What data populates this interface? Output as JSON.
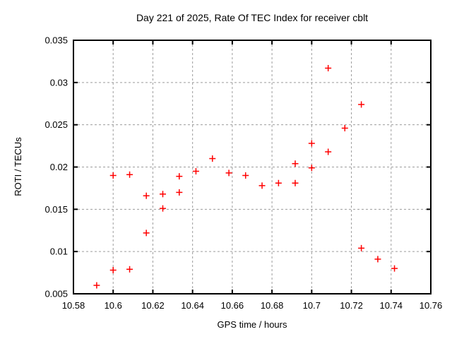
{
  "window": {
    "background": "#ffffff"
  },
  "chart_data": {
    "type": "scatter",
    "title": "Day 221 of 2025, Rate Of TEC Index for receiver cblt",
    "xlabel": "GPS time / hours",
    "ylabel": "ROTI / TECUs",
    "xlim": [
      10.58,
      10.76
    ],
    "ylim": [
      0.005,
      0.035
    ],
    "x_ticks": [
      "10.58",
      "10.6",
      "10.62",
      "10.64",
      "10.66",
      "10.68",
      "10.7",
      "10.72",
      "10.74",
      "10.76"
    ],
    "y_ticks": [
      "0.005",
      "0.01",
      "0.015",
      "0.02",
      "0.025",
      "0.03",
      "0.035"
    ],
    "grid": true,
    "legend": "none",
    "marker": {
      "shape": "plus",
      "color": "#ff0000",
      "size": 9
    },
    "colors": {
      "grid": "#9c9c9c",
      "border": "#000000",
      "text": "#000000"
    },
    "series": [
      {
        "name": "ROTI",
        "points": [
          [
            10.5917,
            0.006
          ],
          [
            10.6,
            0.0078
          ],
          [
            10.6,
            0.019
          ],
          [
            10.6083,
            0.0079
          ],
          [
            10.6083,
            0.0191
          ],
          [
            10.6167,
            0.0122
          ],
          [
            10.6167,
            0.0166
          ],
          [
            10.625,
            0.0151
          ],
          [
            10.625,
            0.0168
          ],
          [
            10.6333,
            0.017
          ],
          [
            10.6333,
            0.0189
          ],
          [
            10.6417,
            0.0195
          ],
          [
            10.65,
            0.021
          ],
          [
            10.6583,
            0.0193
          ],
          [
            10.6667,
            0.019
          ],
          [
            10.675,
            0.0178
          ],
          [
            10.6833,
            0.0181
          ],
          [
            10.6917,
            0.0181
          ],
          [
            10.6917,
            0.0204
          ],
          [
            10.7,
            0.0199
          ],
          [
            10.7,
            0.0228
          ],
          [
            10.7083,
            0.0218
          ],
          [
            10.7083,
            0.0317
          ],
          [
            10.7167,
            0.0246
          ],
          [
            10.725,
            0.0104
          ],
          [
            10.725,
            0.0274
          ],
          [
            10.7333,
            0.0091
          ],
          [
            10.7417,
            0.008
          ]
        ]
      }
    ]
  }
}
